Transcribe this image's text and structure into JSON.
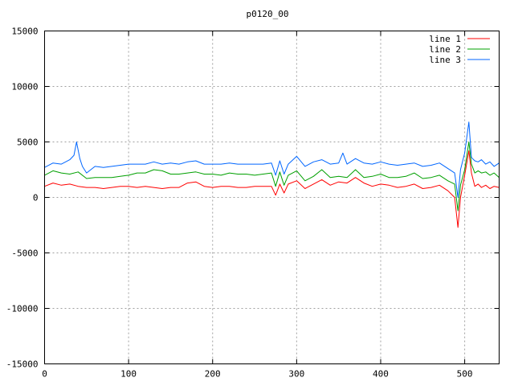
{
  "chart_data": {
    "type": "line",
    "title": "p0120_00",
    "xlabel": "",
    "ylabel": "",
    "xlim": [
      0,
      541
    ],
    "ylim": [
      -15000,
      15000
    ],
    "x_ticks": [
      "0",
      "100",
      "200",
      "300",
      "400",
      "500"
    ],
    "y_ticks": [
      "-15000",
      "-10000",
      "-5000",
      "0",
      "5000",
      "10000",
      "15000"
    ],
    "grid": true,
    "legend_position": "top-right",
    "series": [
      {
        "name": "line 1",
        "color": "#ff0000",
        "x": [
          0,
          10,
          20,
          30,
          40,
          50,
          60,
          70,
          80,
          90,
          100,
          110,
          120,
          130,
          140,
          150,
          160,
          170,
          180,
          190,
          200,
          210,
          220,
          230,
          240,
          250,
          260,
          270,
          275,
          280,
          285,
          290,
          300,
          310,
          320,
          330,
          340,
          350,
          360,
          370,
          380,
          390,
          400,
          410,
          420,
          430,
          440,
          450,
          460,
          470,
          480,
          488,
          492,
          495,
          500,
          505,
          508,
          512,
          516,
          520,
          525,
          530,
          535,
          541
        ],
        "y": [
          1000,
          1300,
          1100,
          1200,
          1000,
          900,
          900,
          800,
          900,
          1000,
          1000,
          900,
          1000,
          900,
          800,
          900,
          900,
          1300,
          1400,
          1000,
          900,
          1000,
          1000,
          900,
          900,
          1000,
          1000,
          1000,
          200,
          1200,
          400,
          1200,
          1500,
          800,
          1200,
          1600,
          1100,
          1400,
          1300,
          1800,
          1300,
          1000,
          1200,
          1100,
          900,
          1000,
          1200,
          800,
          900,
          1100,
          600,
          0,
          -2700,
          0,
          2000,
          4200,
          2200,
          1000,
          1200,
          900,
          1100,
          800,
          1000,
          900
        ]
      },
      {
        "name": "line 2",
        "color": "#00a000",
        "x": [
          0,
          10,
          20,
          30,
          40,
          50,
          60,
          70,
          80,
          90,
          100,
          110,
          120,
          130,
          140,
          150,
          160,
          170,
          180,
          190,
          200,
          210,
          220,
          230,
          240,
          250,
          260,
          270,
          275,
          280,
          285,
          290,
          300,
          310,
          320,
          330,
          340,
          350,
          360,
          370,
          380,
          390,
          400,
          410,
          420,
          430,
          440,
          450,
          460,
          470,
          480,
          488,
          492,
          495,
          500,
          505,
          508,
          512,
          516,
          520,
          525,
          530,
          535,
          541
        ],
        "y": [
          2000,
          2400,
          2200,
          2100,
          2300,
          1700,
          1800,
          1800,
          1800,
          1900,
          2000,
          2200,
          2200,
          2500,
          2400,
          2100,
          2100,
          2200,
          2300,
          2100,
          2100,
          2000,
          2200,
          2100,
          2100,
          2000,
          2100,
          2200,
          1000,
          2300,
          1100,
          2000,
          2400,
          1500,
          1900,
          2500,
          1800,
          1900,
          1800,
          2500,
          1800,
          1900,
          2100,
          1800,
          1800,
          1900,
          2200,
          1700,
          1800,
          2000,
          1500,
          1200,
          -1200,
          1100,
          2500,
          5000,
          3000,
          2200,
          2400,
          2200,
          2300,
          2000,
          2200,
          1800
        ]
      },
      {
        "name": "line 3",
        "color": "#0066ff",
        "x": [
          0,
          10,
          20,
          30,
          35,
          38,
          42,
          45,
          50,
          60,
          70,
          80,
          90,
          100,
          110,
          120,
          130,
          140,
          150,
          160,
          170,
          180,
          190,
          200,
          210,
          220,
          230,
          240,
          250,
          260,
          270,
          275,
          280,
          285,
          290,
          300,
          310,
          320,
          330,
          340,
          350,
          355,
          360,
          370,
          380,
          390,
          400,
          410,
          420,
          430,
          440,
          450,
          460,
          470,
          480,
          488,
          492,
          495,
          500,
          505,
          508,
          512,
          516,
          520,
          525,
          530,
          535,
          541
        ],
        "y": [
          2700,
          3100,
          3000,
          3400,
          3800,
          5000,
          3500,
          2800,
          2200,
          2800,
          2700,
          2800,
          2900,
          3000,
          3000,
          3000,
          3200,
          3000,
          3100,
          3000,
          3200,
          3300,
          3000,
          3000,
          3000,
          3100,
          3000,
          3000,
          3000,
          3000,
          3100,
          2000,
          3300,
          2100,
          3000,
          3700,
          2800,
          3200,
          3400,
          3000,
          3100,
          4000,
          3000,
          3500,
          3100,
          3000,
          3200,
          3000,
          2900,
          3000,
          3100,
          2800,
          2900,
          3100,
          2600,
          2200,
          0,
          2500,
          4000,
          6800,
          3600,
          3300,
          3200,
          3400,
          3000,
          3200,
          2800,
          3100
        ]
      }
    ]
  }
}
